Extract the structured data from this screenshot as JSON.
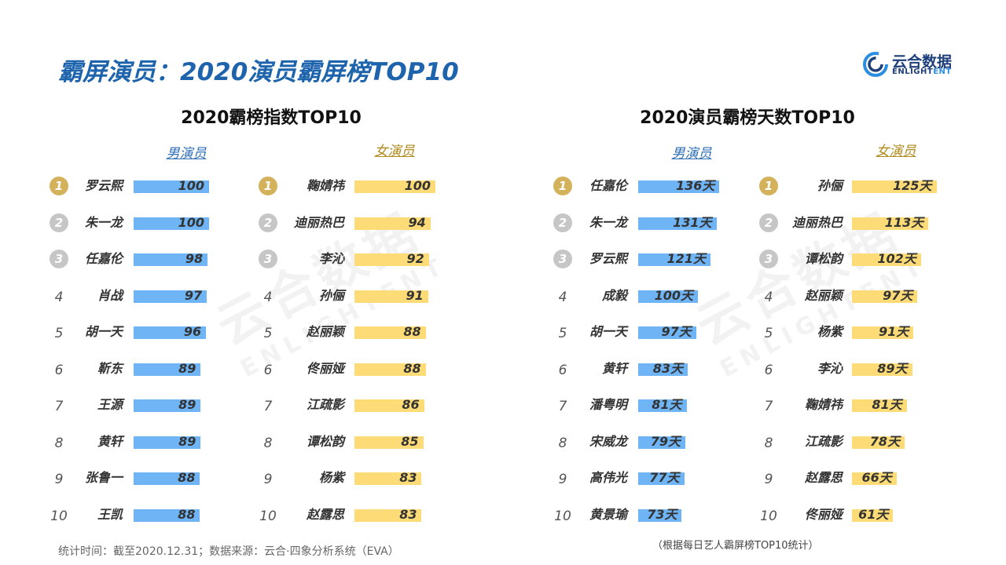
{
  "page": {
    "title": "霸屏演员：2020演员霸屏榜TOP10",
    "footer_left": "统计时间：截至2020.12.31；数据来源：云合·四象分析系统（EVA）",
    "footer_right": "（根据每日艺人霸屏榜TOP10统计）",
    "accent_color": "#1e64ad"
  },
  "logo": {
    "name": "云合数据",
    "sub_a": "ENLIGHT",
    "sub_b": "ENT"
  },
  "watermark": {
    "cn": "云合数据",
    "en": "ENLIGHTENT"
  },
  "colors": {
    "male_bar": "#6fb5f5",
    "female_bar": "#fddb77",
    "gold": "#d4b25c",
    "silver": "#c6c6c6",
    "bronze": "#c6c6c6"
  },
  "chart_data": [
    {
      "type": "bar",
      "title": "2020霸榜指数TOP10",
      "series": [
        {
          "name": "男演员",
          "ranks": [
            "1",
            "2",
            "3",
            "4",
            "5",
            "6",
            "7",
            "8",
            "9",
            "10"
          ],
          "categories": [
            "罗云熙",
            "朱一龙",
            "任嘉伦",
            "肖战",
            "胡一天",
            "靳东",
            "王源",
            "黄轩",
            "张鲁一",
            "王凯"
          ],
          "values": [
            100,
            100,
            98,
            97,
            96,
            89,
            89,
            89,
            88,
            88
          ],
          "labels": [
            "100",
            "100",
            "98",
            "97",
            "96",
            "89",
            "89",
            "89",
            "88",
            "88"
          ]
        },
        {
          "name": "女演员",
          "ranks": [
            "1",
            "2",
            "3",
            "4",
            "5",
            "6",
            "7",
            "8",
            "9",
            "10"
          ],
          "categories": [
            "鞠婧祎",
            "迪丽热巴",
            "李沁",
            "孙俪",
            "赵丽颖",
            "佟丽娅",
            "江疏影",
            "谭松韵",
            "杨紫",
            "赵露思"
          ],
          "values": [
            100,
            94,
            92,
            91,
            88,
            88,
            86,
            85,
            83,
            83
          ],
          "labels": [
            "100",
            "94",
            "92",
            "91",
            "88",
            "88",
            "86",
            "85",
            "83",
            "83"
          ]
        }
      ]
    },
    {
      "type": "bar",
      "title": "2020演员霸榜天数TOP10",
      "series": [
        {
          "name": "男演员",
          "ranks": [
            "1",
            "2",
            "3",
            "4",
            "5",
            "6",
            "7",
            "8",
            "9",
            "10"
          ],
          "categories": [
            "任嘉伦",
            "朱一龙",
            "罗云熙",
            "成毅",
            "胡一天",
            "黄轩",
            "潘粤明",
            "宋威龙",
            "高伟光",
            "黄景瑜"
          ],
          "values": [
            136,
            131,
            121,
            100,
            97,
            83,
            81,
            79,
            77,
            73
          ],
          "labels": [
            "136天",
            "131天",
            "121天",
            "100天",
            "97天",
            "83天",
            "81天",
            "79天",
            "77天",
            "73天"
          ]
        },
        {
          "name": "女演员",
          "ranks": [
            "1",
            "2",
            "3",
            "4",
            "5",
            "6",
            "7",
            "8",
            "9",
            "10"
          ],
          "categories": [
            "孙俪",
            "迪丽热巴",
            "谭松韵",
            "赵丽颖",
            "杨紫",
            "李沁",
            "鞠婧祎",
            "江疏影",
            "赵露思",
            "佟丽娅"
          ],
          "values": [
            125,
            113,
            102,
            97,
            91,
            89,
            81,
            78,
            66,
            61
          ],
          "labels": [
            "125天",
            "113天",
            "102天",
            "97天",
            "91天",
            "89天",
            "81天",
            "78天",
            "66天",
            "61天"
          ]
        }
      ]
    }
  ]
}
